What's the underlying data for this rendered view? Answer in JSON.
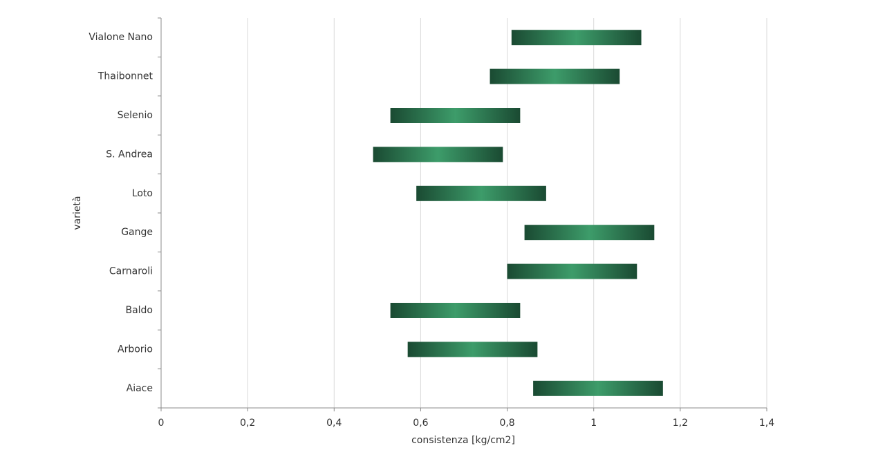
{
  "chart_data": {
    "type": "floating-bar",
    "xlabel": "consistenza [kg/cm2]",
    "ylabel": "varietà",
    "categories": [
      "Aiace",
      "Arborio",
      "Baldo",
      "Carnaroli",
      "Gange",
      "Loto",
      "S. Andrea",
      "Selenio",
      "Thaibonnet",
      "Vialone Nano"
    ],
    "low": [
      0.86,
      0.57,
      0.53,
      0.8,
      0.84,
      0.59,
      0.49,
      0.53,
      0.76,
      0.81
    ],
    "high": [
      1.16,
      0.87,
      0.83,
      1.1,
      1.14,
      0.89,
      0.79,
      0.83,
      1.06,
      1.11
    ],
    "colors": [
      "#1a4a32",
      "#3d9c6a"
    ],
    "xlim": [
      0,
      1.4
    ],
    "xticks": [
      0,
      {
        "value": 0.2,
        "label": "0,2"
      },
      {
        "value": 0.4,
        "label": "0,4"
      },
      {
        "value": 0.6,
        "label": "0,6"
      },
      {
        "value": 0.8,
        "label": "0,8"
      },
      1,
      {
        "value": 1.2,
        "label": "1,2"
      },
      {
        "value": 1.4,
        "label": "1,4"
      }
    ],
    "grid": true
  }
}
